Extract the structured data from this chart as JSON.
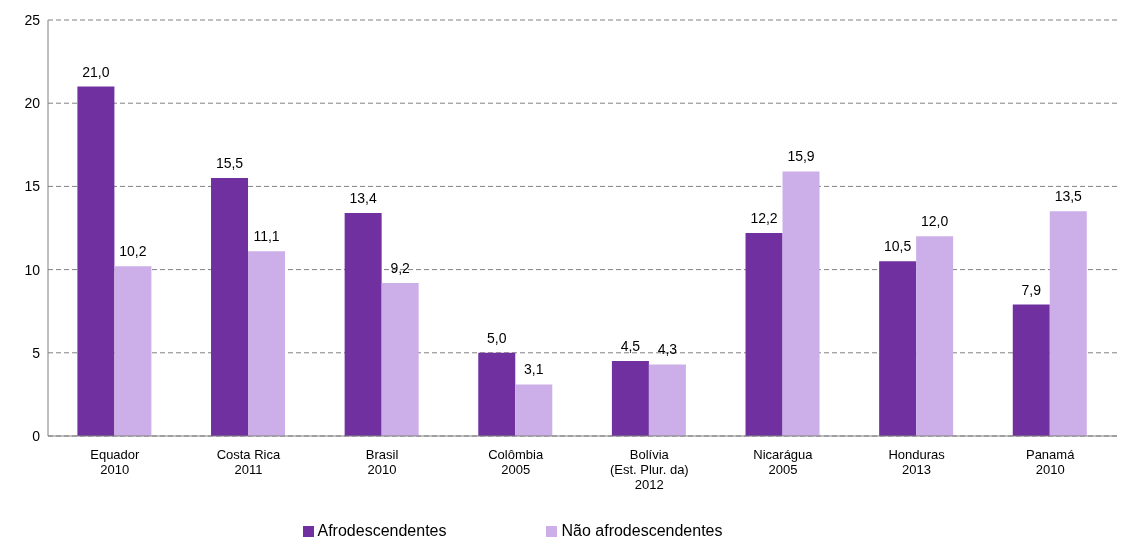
{
  "chart_data": {
    "type": "bar",
    "categories": [
      "Equador\n2010",
      "Costa Rica\n2011",
      "Brasil\n2010",
      "Colômbia\n2005",
      "Bolívia\n(Est. Plur. da)\n2012",
      "Nicarágua\n2005",
      "Honduras\n2013",
      "Panamá\n2010"
    ],
    "series": [
      {
        "name": "Afrodescendentes",
        "color": "#7030a0",
        "values": [
          21.0,
          15.5,
          13.4,
          5.0,
          4.5,
          12.2,
          10.5,
          7.9
        ],
        "value_labels": [
          "21,0",
          "15,5",
          "13,4",
          "5,0",
          "4,5",
          "12,2",
          "10,5",
          "7,9"
        ]
      },
      {
        "name": "Não afrodescendentes",
        "color": "#ccaee8",
        "values": [
          10.2,
          11.1,
          9.2,
          3.1,
          4.3,
          15.9,
          12.0,
          13.5
        ],
        "value_labels": [
          "10,2",
          "11,1",
          "9,2",
          "3,1",
          "4,3",
          "15,9",
          "12,0",
          "13,5"
        ]
      }
    ],
    "ylim": [
      0,
      25
    ],
    "yticks": [
      0,
      5,
      10,
      15,
      20,
      25
    ],
    "grid": "y",
    "legend": "bottom"
  }
}
